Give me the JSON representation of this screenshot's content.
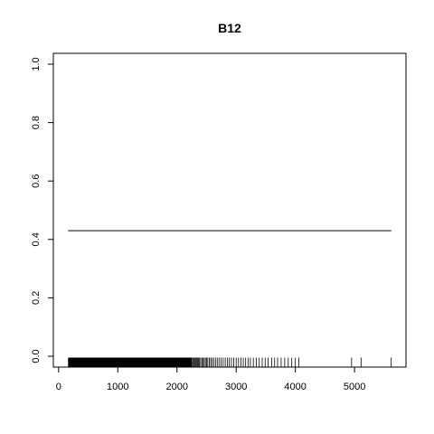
{
  "chart_data": {
    "type": "line",
    "title": "B12",
    "xlabel": "",
    "ylabel": "",
    "xlim": [
      140,
      5640
    ],
    "ylim": [
      0,
      1
    ],
    "x_ticks": [
      0,
      1000,
      2000,
      3000,
      4000,
      5000
    ],
    "x_tick_labels": [
      "0",
      "1000",
      "2000",
      "3000",
      "4000",
      "5000"
    ],
    "y_ticks": [
      0,
      0.2,
      0.4,
      0.6,
      0.8,
      1.0
    ],
    "y_tick_labels": [
      "0.0",
      "0.2",
      "0.4",
      "0.6",
      "0.8",
      "1.0"
    ],
    "grid": false,
    "legend": "none",
    "series": [
      {
        "x": [
          160,
          5620
        ],
        "y": [
          0.43,
          0.43
        ],
        "color": "#000000"
      }
    ],
    "rug": {
      "dense_start": 160,
      "dense_end": 2250,
      "sparse_values": [
        2260,
        2275,
        2290,
        2305,
        2320,
        2335,
        2350,
        2365,
        2380,
        2400,
        2420,
        2440,
        2460,
        2480,
        2500,
        2520,
        2545,
        2570,
        2595,
        2620,
        2650,
        2680,
        2710,
        2745,
        2780,
        2815,
        2850,
        2885,
        2920,
        2960,
        3000,
        3040,
        3080,
        3120,
        3160,
        3200,
        3240,
        3290,
        3340,
        3390,
        3440,
        3490,
        3540,
        3600,
        3650,
        3700,
        3760,
        3820,
        3880,
        3940,
        4000,
        4060,
        4950,
        5110,
        5620
      ],
      "color": "#000000"
    }
  }
}
